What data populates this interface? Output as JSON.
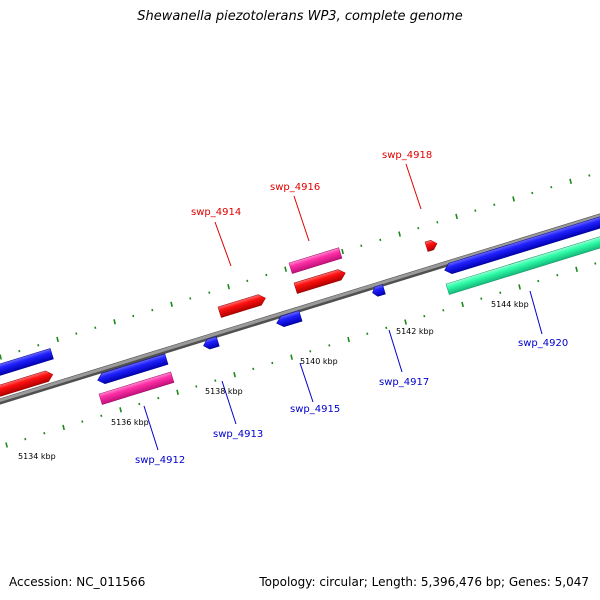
{
  "title": "Shewanella piezotolerans WP3, complete genome",
  "footer": {
    "accession": "Accession: NC_011566",
    "summary": "Topology: circular; Length: 5,396,476 bp; Genes: 5,047"
  },
  "colors": {
    "forward_gene": "#1414ff",
    "forward_label": "#e00000",
    "reverse_label": "#0000cc",
    "red_gene": "#ff1010",
    "pink_gene": "#ff2fa6",
    "green_gene": "#28ffa8",
    "ticks": "#1a8a1a",
    "backbone": "#808080"
  },
  "kbp_labels": [
    "5134 kbp",
    "5136 kbp",
    "5138 kbp",
    "5140 kbp",
    "5142 kbp",
    "5144 kbp"
  ],
  "gene_labels": {
    "top": [
      "swp_4914",
      "swp_4916",
      "swp_4918"
    ],
    "bottom": [
      "swp_4912",
      "swp_4913",
      "swp_4915",
      "swp_4917",
      "swp_4920"
    ]
  }
}
